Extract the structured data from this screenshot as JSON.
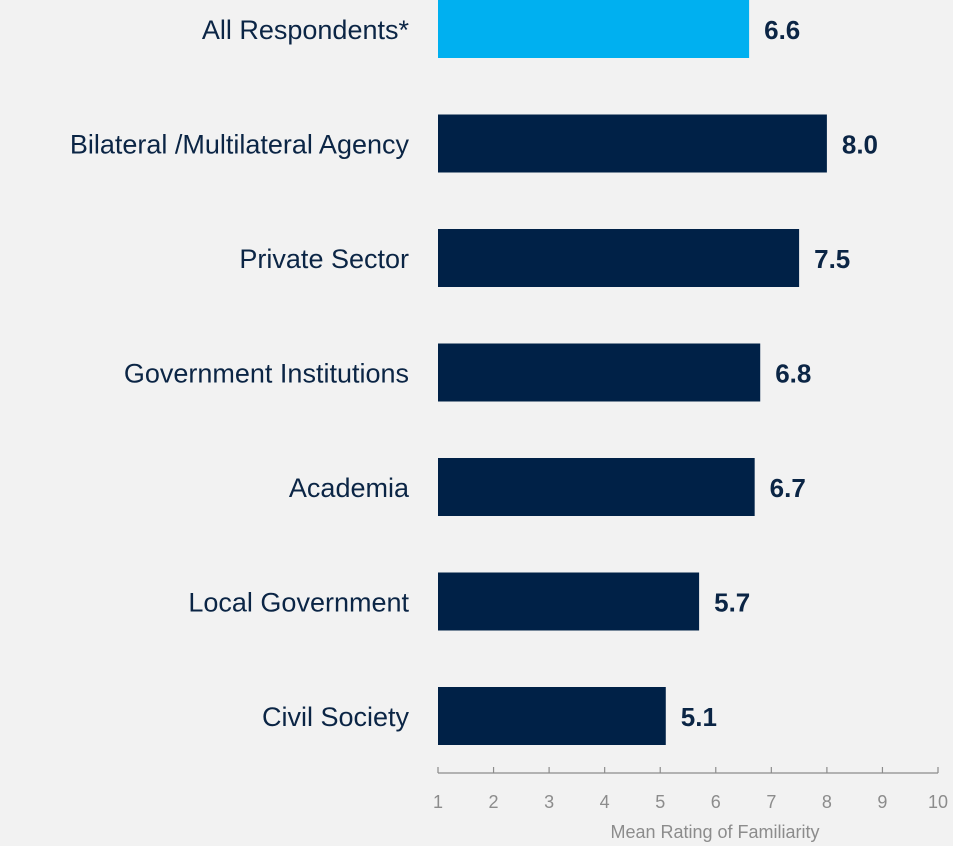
{
  "chart_data": {
    "type": "bar",
    "orientation": "horizontal",
    "categories": [
      "All Respondents*",
      "Bilateral /Multilateral Agency",
      "Private Sector",
      "Government Institutions",
      "Academia",
      "Local Government",
      "Civil Society"
    ],
    "values": [
      6.6,
      8.0,
      7.5,
      6.8,
      6.7,
      5.7,
      5.1
    ],
    "value_labels": [
      "6.6",
      "8.0",
      "7.5",
      "6.8",
      "6.7",
      "5.7",
      "5.1"
    ],
    "bar_colors": [
      "#00b0f0",
      "#002147",
      "#002147",
      "#002147",
      "#002147",
      "#002147",
      "#002147"
    ],
    "xlabel": "Mean Rating of Familiarity",
    "xlim": [
      1,
      10
    ],
    "x_ticks": [
      "1",
      "2",
      "3",
      "4",
      "5",
      "6",
      "7",
      "8",
      "9",
      "10"
    ],
    "grid": false,
    "legend": "none"
  }
}
